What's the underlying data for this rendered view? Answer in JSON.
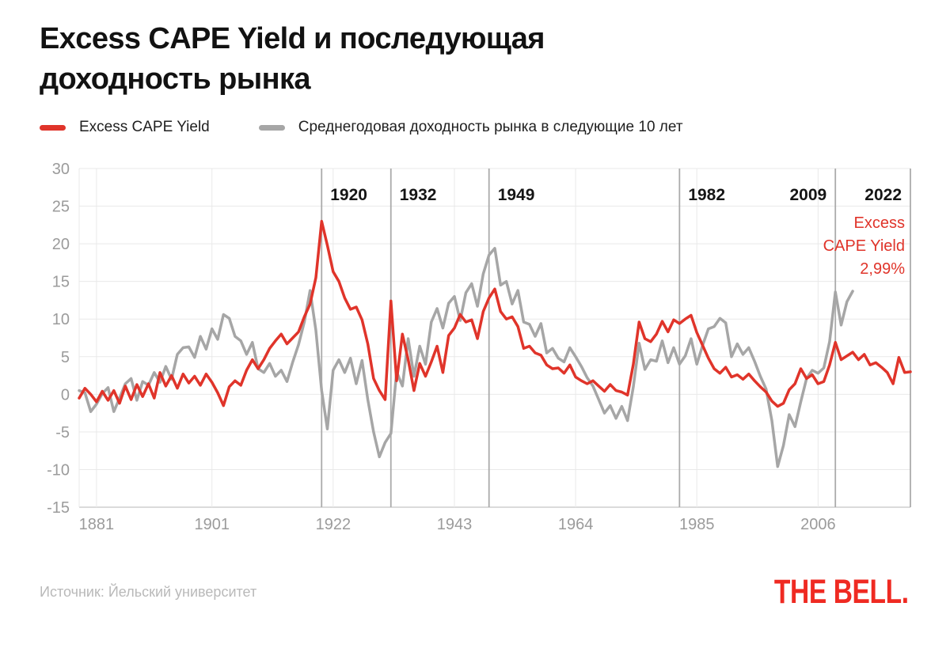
{
  "title": "Excess CAPE Yield и последующая доходность рынка",
  "legend": [
    {
      "label": "Excess CAPE Yield",
      "color": "#e0342a"
    },
    {
      "label": "Среднегодовая доходность рынка в следующие 10 лет",
      "color": "#a6a6a6"
    }
  ],
  "annotation": {
    "text": "Excess\nCAPE Yield\n2,99%",
    "color": "#e0342a",
    "last_value": "2,99%"
  },
  "source": "Источник: Йельский университет",
  "logo": "THE BELL.",
  "colors": {
    "background": "#ffffff",
    "grid": "#e9e9e9",
    "axis": "#cfcfcf",
    "event_line": "#ababab",
    "tick_label": "#9b9b9b",
    "event_label": "#151515",
    "red": "#e0342a",
    "gray": "#a6a6a6",
    "logo_red": "#ef2a22"
  },
  "chart_data": {
    "type": "line",
    "title": "Excess CAPE Yield и последующая доходность рынка",
    "xlabel": "",
    "ylabel": "",
    "xlim": [
      1878,
      2022
    ],
    "ylim": [
      -15,
      30
    ],
    "grid": true,
    "legend_position": "top",
    "x_ticks": [
      1881,
      1901,
      1922,
      1943,
      1964,
      1985,
      2006
    ],
    "y_ticks": [
      30,
      25,
      20,
      15,
      10,
      5,
      0,
      -5,
      -10,
      -15
    ],
    "event_lines": [
      {
        "year": 1920,
        "label": "1920",
        "side": "right"
      },
      {
        "year": 1932,
        "label": "1932",
        "side": "right"
      },
      {
        "year": 1949,
        "label": "1949",
        "side": "right"
      },
      {
        "year": 1982,
        "label": "1982",
        "side": "right"
      },
      {
        "year": 2009,
        "label": "2009",
        "side": "left"
      },
      {
        "year": 2022,
        "label": "2022",
        "side": "left"
      }
    ],
    "series": [
      {
        "name": "Excess CAPE Yield",
        "color": "#e0342a",
        "x_start": 1878,
        "x_step": 1,
        "values": [
          -0.5,
          0.8,
          0,
          -1,
          0.4,
          -0.8,
          0.5,
          -1.2,
          1.1,
          -0.7,
          1.3,
          -0.3,
          1.4,
          -0.5,
          2.9,
          1.1,
          2.5,
          0.8,
          2.7,
          1.5,
          2.4,
          1.2,
          2.7,
          1.6,
          0.2,
          -1.5,
          1,
          1.8,
          1.2,
          3.2,
          4.6,
          3.4,
          4.6,
          6.1,
          7.1,
          8,
          6.7,
          7.5,
          8.3,
          10.3,
          12,
          15.5,
          23,
          19.8,
          16.3,
          15,
          12.8,
          11.3,
          11.6,
          9.9,
          6.7,
          2.1,
          0.5,
          -0.7,
          12.4,
          1.8,
          8,
          4.6,
          0.5,
          4.1,
          2.4,
          4.3,
          6.4,
          2.9,
          7.8,
          8.8,
          10.6,
          9.6,
          9.9,
          7.4,
          11,
          12.8,
          14,
          11,
          10,
          10.3,
          9,
          6.1,
          6.4,
          5.5,
          5.2,
          3.9,
          3.4,
          3.5,
          2.8,
          3.9,
          2.3,
          1.8,
          1.4,
          1.8,
          1.1,
          0.4,
          1.3,
          0.5,
          0.3,
          -0.1,
          4,
          9.6,
          7.4,
          7,
          8,
          9.7,
          8.3,
          9.9,
          9.4,
          10,
          10.5,
          8.2,
          6.5,
          4.8,
          3.4,
          2.8,
          3.6,
          2.3,
          2.6,
          2,
          2.7,
          1.8,
          1,
          0.3,
          -0.9,
          -1.6,
          -1.2,
          0.6,
          1.4,
          3.4,
          2.1,
          2.6,
          1.4,
          1.7,
          3.9,
          6.9,
          4.6,
          5.1,
          5.6,
          4.6,
          5.3,
          3.9,
          4.2,
          3.6,
          2.9,
          1.4,
          4.9,
          2.9,
          2.99
        ]
      },
      {
        "name": "Среднегодовая доходность рынка в следующие 10 лет",
        "color": "#a6a6a6",
        "x_start": 1878,
        "x_step": 1,
        "values": [
          0.5,
          0.2,
          -2.3,
          -1.3,
          0.1,
          0.9,
          -2.3,
          -0.5,
          1.4,
          2.1,
          -0.8,
          1.7,
          1.2,
          2.9,
          1.6,
          3.7,
          2,
          5.3,
          6.2,
          6.3,
          4.9,
          7.7,
          6,
          8.7,
          7.3,
          10.6,
          10.1,
          7.7,
          7.1,
          5.3,
          6.9,
          3.4,
          2.9,
          4.1,
          2.4,
          3.2,
          1.7,
          4.3,
          6.6,
          9.6,
          13.8,
          8.5,
          0.5,
          -4.6,
          3.2,
          4.6,
          2.9,
          4.8,
          1.4,
          4.5,
          -0.7,
          -5,
          -8.3,
          -6.4,
          -5.2,
          3,
          1.1,
          7.4,
          2.4,
          6.4,
          4,
          9.6,
          11.4,
          8.8,
          12.1,
          13,
          9.8,
          13.5,
          14.7,
          11.7,
          16,
          18.5,
          19.4,
          14.5,
          15,
          12,
          13.8,
          9.6,
          9.3,
          7.7,
          9.4,
          5.5,
          6.1,
          4.8,
          4.3,
          6.2,
          5,
          3.7,
          2.2,
          1.1,
          -0.7,
          -2.5,
          -1.5,
          -3.2,
          -1.6,
          -3.5,
          1,
          6.8,
          3.3,
          4.6,
          4.4,
          7.1,
          4.2,
          6.2,
          4,
          5.1,
          7.4,
          4,
          6.5,
          8.7,
          9,
          10.1,
          9.5,
          5,
          6.7,
          5.3,
          6.2,
          4.4,
          2.4,
          0.7,
          -3.5,
          -9.6,
          -6.8,
          -2.7,
          -4.3,
          -1,
          2.1,
          3.2,
          2.8,
          3.5,
          7,
          13.6,
          9.2,
          12.3,
          13.7
        ]
      }
    ]
  }
}
